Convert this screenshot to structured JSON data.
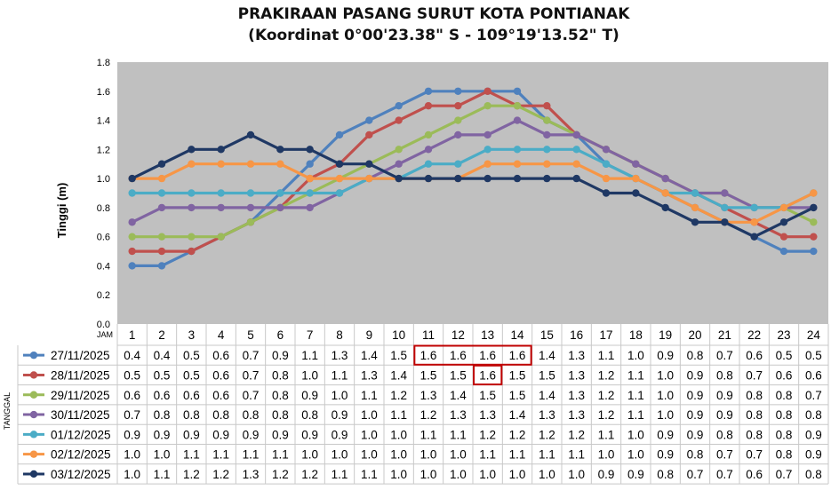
{
  "title_line1": "PRAKIRAAN PASANG SURUT KOTA PONTIANAK",
  "title_line2": "(Koordinat 0°00'23.38\" S - 109°19'13.52\" T)",
  "chart_data": {
    "type": "line",
    "ylabel": "Tinggi (m)",
    "xlabel": "JAM",
    "row_axis_label": "TANGGAL",
    "ylim": [
      0,
      1.8
    ],
    "yticks": [
      "0.0",
      "0.2",
      "0.4",
      "0.6",
      "0.8",
      "1.0",
      "1.2",
      "1.4",
      "1.6",
      "1.8"
    ],
    "grid": false,
    "legend": "table-below",
    "x": [
      "1",
      "2",
      "3",
      "4",
      "5",
      "6",
      "7",
      "8",
      "9",
      "10",
      "11",
      "12",
      "13",
      "14",
      "15",
      "16",
      "17",
      "18",
      "19",
      "20",
      "21",
      "22",
      "23",
      "24"
    ],
    "series": [
      {
        "name": "27/11/2025",
        "color": "#4f81bd",
        "values": [
          0.4,
          0.4,
          0.5,
          0.6,
          0.7,
          0.9,
          1.1,
          1.3,
          1.4,
          1.5,
          1.6,
          1.6,
          1.6,
          1.6,
          1.4,
          1.3,
          1.1,
          1.0,
          0.9,
          0.8,
          0.7,
          0.6,
          0.5,
          0.5
        ],
        "labels": [
          "0.4",
          "0.4",
          "0.5",
          "0.6",
          "0.7",
          "0.9",
          "1.1",
          "1.3",
          "1.4",
          "1.5",
          "1.6",
          "1.6",
          "1.6",
          "1.6",
          "1.4",
          "1.3",
          "1.1",
          "1.0",
          "0.9",
          "0.8",
          "0.7",
          "0.6",
          "0.5",
          "0.5"
        ]
      },
      {
        "name": "28/11/2025",
        "color": "#c0504d",
        "values": [
          0.5,
          0.5,
          0.5,
          0.6,
          0.7,
          0.8,
          1.0,
          1.1,
          1.3,
          1.4,
          1.5,
          1.5,
          1.6,
          1.5,
          1.5,
          1.3,
          1.2,
          1.1,
          1.0,
          0.9,
          0.8,
          0.7,
          0.6,
          0.6
        ],
        "labels": [
          "0.5",
          "0.5",
          "0.5",
          "0.6",
          "0.7",
          "0.8",
          "1.0",
          "1.1",
          "1.3",
          "1.4",
          "1.5",
          "1.5",
          "1.6",
          "1.5",
          "1.5",
          "1.3",
          "1.2",
          "1.1",
          "1.0",
          "0.9",
          "0.8",
          "0.7",
          "0.6",
          "0.6"
        ]
      },
      {
        "name": "29/11/2025",
        "color": "#9bbb59",
        "values": [
          0.6,
          0.6,
          0.6,
          0.6,
          0.7,
          0.8,
          0.9,
          1.0,
          1.1,
          1.2,
          1.3,
          1.4,
          1.5,
          1.5,
          1.4,
          1.3,
          1.2,
          1.1,
          1.0,
          0.9,
          0.9,
          0.8,
          0.8,
          0.7
        ],
        "labels": [
          "0.6",
          "0.6",
          "0.6",
          "0.6",
          "0.7",
          "0.8",
          "0.9",
          "1.0",
          "1.1",
          "1.2",
          "1.3",
          "1.4",
          "1.5",
          "1.5",
          "1.4",
          "1.3",
          "1.2",
          "1.1",
          "1.0",
          "0.9",
          "0.9",
          "0.8",
          "0.8",
          "0.7"
        ]
      },
      {
        "name": "30/11/2025",
        "color": "#8064a2",
        "values": [
          0.7,
          0.8,
          0.8,
          0.8,
          0.8,
          0.8,
          0.8,
          0.9,
          1.0,
          1.1,
          1.2,
          1.3,
          1.3,
          1.4,
          1.3,
          1.3,
          1.2,
          1.1,
          1.0,
          0.9,
          0.9,
          0.8,
          0.8,
          0.8
        ],
        "labels": [
          "0.7",
          "0.8",
          "0.8",
          "0.8",
          "0.8",
          "0.8",
          "0.8",
          "0.9",
          "1.0",
          "1.1",
          "1.2",
          "1.3",
          "1.3",
          "1.4",
          "1.3",
          "1.3",
          "1.2",
          "1.1",
          "1.0",
          "0.9",
          "0.9",
          "0.8",
          "0.8",
          "0.8"
        ]
      },
      {
        "name": "01/12/2025",
        "color": "#4bacc6",
        "values": [
          0.9,
          0.9,
          0.9,
          0.9,
          0.9,
          0.9,
          0.9,
          0.9,
          1.0,
          1.0,
          1.1,
          1.1,
          1.2,
          1.2,
          1.2,
          1.2,
          1.1,
          1.0,
          0.9,
          0.9,
          0.8,
          0.8,
          0.8,
          0.9
        ],
        "labels": [
          "0.9",
          "0.9",
          "0.9",
          "0.9",
          "0.9",
          "0.9",
          "0.9",
          "0.9",
          "1.0",
          "1.0",
          "1.1",
          "1.1",
          "1.2",
          "1.2",
          "1.2",
          "1.2",
          "1.1",
          "1.0",
          "0.9",
          "0.9",
          "0.8",
          "0.8",
          "0.8",
          "0.9"
        ]
      },
      {
        "name": "02/12/2025",
        "color": "#f79646",
        "values": [
          1.0,
          1.0,
          1.1,
          1.1,
          1.1,
          1.1,
          1.0,
          1.0,
          1.0,
          1.0,
          1.0,
          1.0,
          1.1,
          1.1,
          1.1,
          1.1,
          1.0,
          1.0,
          0.9,
          0.8,
          0.7,
          0.7,
          0.8,
          0.9
        ],
        "labels": [
          "1.0",
          "1.0",
          "1.1",
          "1.1",
          "1.1",
          "1.1",
          "1.0",
          "1.0",
          "1.0",
          "1.0",
          "1.0",
          "1.0",
          "1.1",
          "1.1",
          "1.1",
          "1.1",
          "1.0",
          "1.0",
          "0.9",
          "0.8",
          "0.7",
          "0.7",
          "0.8",
          "0.9"
        ]
      },
      {
        "name": "03/12/2025",
        "color": "#1f3864",
        "values": [
          1.0,
          1.1,
          1.2,
          1.2,
          1.3,
          1.2,
          1.2,
          1.1,
          1.1,
          1.0,
          1.0,
          1.0,
          1.0,
          1.0,
          1.0,
          1.0,
          0.9,
          0.9,
          0.8,
          0.7,
          0.7,
          0.6,
          0.7,
          0.8
        ],
        "labels": [
          "1.0",
          "1.1",
          "1.2",
          "1.2",
          "1.3",
          "1.2",
          "1.2",
          "1.1",
          "1.1",
          "1.0",
          "1.0",
          "1.0",
          "1.0",
          "1.0",
          "1.0",
          "1.0",
          "0.9",
          "0.9",
          "0.8",
          "0.7",
          "0.7",
          "0.6",
          "0.7",
          "0.8"
        ]
      }
    ],
    "highlights": [
      {
        "series": 0,
        "from_hour": 11,
        "to_hour": 14,
        "color": "#c00000"
      },
      {
        "series": 1,
        "from_hour": 13,
        "to_hour": 13,
        "color": "#c00000"
      }
    ],
    "plot_background": "#c0c0c0"
  }
}
